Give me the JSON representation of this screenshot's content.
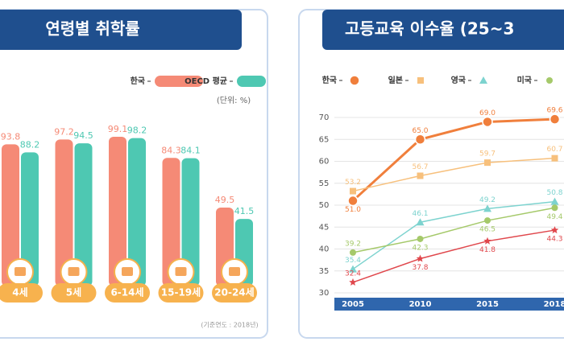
{
  "chart_data": [
    {
      "type": "bar",
      "title": "연령별 취학률",
      "categories": [
        "4세",
        "5세",
        "6-14세",
        "15-19세",
        "20-24세"
      ],
      "series": [
        {
          "name": "한국",
          "color": "#f58a76",
          "values": [
            93.8,
            97.2,
            99.1,
            84.3,
            49.5
          ]
        },
        {
          "name": "OECD 평균",
          "color": "#4ec8b2",
          "values": [
            88.2,
            94.5,
            98.2,
            84.1,
            41.5
          ]
        }
      ],
      "unit_note": "(단위: %)",
      "footnote": "(기준연도 : 2018년)"
    },
    {
      "type": "line",
      "title": "고등교육 이수율 (25~3",
      "categories": [
        "2005",
        "2010",
        "2015",
        "2018"
      ],
      "series": [
        {
          "name": "한국",
          "color": "#f07f3c",
          "marker": "circle",
          "values": [
            51.0,
            65.0,
            69.0,
            69.6
          ],
          "value_labels": [
            "51.0",
            "65.0",
            "69.0",
            "69.6"
          ]
        },
        {
          "name": "일본",
          "color": "#f7c07c",
          "marker": "square",
          "values": [
            53.2,
            56.7,
            59.7,
            60.7
          ]
        },
        {
          "name": "영국",
          "color": "#7dd3cf",
          "marker": "triangle",
          "values": [
            35.4,
            46.1,
            49.2,
            50.8
          ]
        },
        {
          "name": "미국",
          "color": "#a5c96a",
          "marker": "dot",
          "values": [
            39.2,
            42.3,
            46.5,
            49.4
          ]
        },
        {
          "color": "#e0474c",
          "marker": "star",
          "values": [
            32.4,
            37.8,
            41.8,
            44.3
          ]
        }
      ],
      "ylim": [
        30,
        70
      ],
      "yticks": [
        30,
        35,
        40,
        45,
        50,
        55,
        60,
        65,
        70
      ],
      "grid": true
    }
  ]
}
